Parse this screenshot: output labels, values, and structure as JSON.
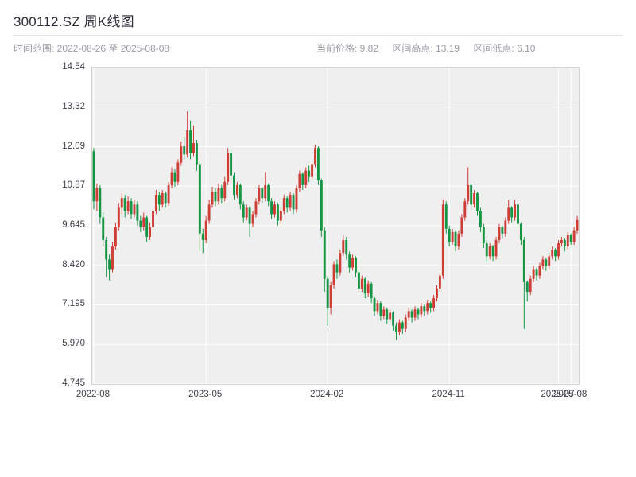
{
  "header": {
    "title": "300112.SZ 周K线图",
    "time_range": "时间范围: 2022-08-26 至 2025-08-08",
    "stats": [
      {
        "text": "当前价格: 9.82"
      },
      {
        "text": "区间高点: 13.19"
      },
      {
        "text": "区间低点: 6.10"
      }
    ]
  },
  "chart_data": {
    "type": "candlestick",
    "title": "300112.SZ 周K线图",
    "symbol": "300112.SZ",
    "period": "weekly",
    "date_start": "2022-08-26",
    "date_end": "2025-08-08",
    "current_price": 9.82,
    "range_high": 13.19,
    "range_low": 6.1,
    "ylim": [
      4.745,
      14.54
    ],
    "y_tick_labels": [
      "14.54",
      "13.32",
      "12.09",
      "10.87",
      "9.645",
      "8.420",
      "7.195",
      "5.970",
      "4.745"
    ],
    "y_tick_values": [
      14.54,
      13.32,
      12.09,
      10.87,
      9.645,
      8.42,
      7.195,
      5.97,
      4.745
    ],
    "x_ticks": [
      {
        "label": "2022-08",
        "i": 0
      },
      {
        "label": "2023-05",
        "i": 36
      },
      {
        "label": "2024-02",
        "i": 75
      },
      {
        "label": "2024-11",
        "i": 114
      },
      {
        "label": "2025-07",
        "i": 149
      },
      {
        "label": "2025-08",
        "i": 153
      }
    ],
    "grid": true,
    "plot_bg": "#efefef",
    "grid_color": "#ffffff",
    "up_color": "#cf3e36",
    "down_color": "#169644",
    "ohlc": [
      [
        11.95,
        12.05,
        10.15,
        10.4
      ],
      [
        10.4,
        10.95,
        10.1,
        10.8
      ],
      [
        10.8,
        10.9,
        9.7,
        9.9
      ],
      [
        9.9,
        10.05,
        9.0,
        9.2
      ],
      [
        9.2,
        9.3,
        8.05,
        8.6
      ],
      [
        8.6,
        8.75,
        7.95,
        8.3
      ],
      [
        8.3,
        9.15,
        8.2,
        9.0
      ],
      [
        9.0,
        9.75,
        8.9,
        9.6
      ],
      [
        9.6,
        10.35,
        9.5,
        10.2
      ],
      [
        10.2,
        10.65,
        10.0,
        10.5
      ],
      [
        10.5,
        10.6,
        9.9,
        10.1
      ],
      [
        10.1,
        10.55,
        10.0,
        10.4
      ],
      [
        10.4,
        10.5,
        9.85,
        10.0
      ],
      [
        10.0,
        10.45,
        9.9,
        10.3
      ],
      [
        10.3,
        10.4,
        9.65,
        9.8
      ],
      [
        9.8,
        9.95,
        9.45,
        9.6
      ],
      [
        9.6,
        10.05,
        9.5,
        9.9
      ],
      [
        9.9,
        9.95,
        9.15,
        9.3
      ],
      [
        9.3,
        9.75,
        9.2,
        9.6
      ],
      [
        9.6,
        10.2,
        9.5,
        10.1
      ],
      [
        10.1,
        10.75,
        10.0,
        10.6
      ],
      [
        10.6,
        10.7,
        10.1,
        10.3
      ],
      [
        10.3,
        10.75,
        10.2,
        10.65
      ],
      [
        10.65,
        10.7,
        10.2,
        10.35
      ],
      [
        10.35,
        11.0,
        10.25,
        10.9
      ],
      [
        10.9,
        11.45,
        10.8,
        11.3
      ],
      [
        11.3,
        11.4,
        10.85,
        11.0
      ],
      [
        11.0,
        11.7,
        10.9,
        11.6
      ],
      [
        11.6,
        12.25,
        11.5,
        12.1
      ],
      [
        12.1,
        12.4,
        11.7,
        11.85
      ],
      [
        11.85,
        13.19,
        11.75,
        12.6
      ],
      [
        12.6,
        12.9,
        11.7,
        11.9
      ],
      [
        11.9,
        12.75,
        11.8,
        12.2
      ],
      [
        12.2,
        12.3,
        11.35,
        11.55
      ],
      [
        11.55,
        11.65,
        8.85,
        9.4
      ],
      [
        9.4,
        9.55,
        8.8,
        9.2
      ],
      [
        9.2,
        9.95,
        9.1,
        9.8
      ],
      [
        9.8,
        10.45,
        9.7,
        10.3
      ],
      [
        10.3,
        10.85,
        10.2,
        10.7
      ],
      [
        10.7,
        10.8,
        10.25,
        10.4
      ],
      [
        10.4,
        10.95,
        10.3,
        10.8
      ],
      [
        10.8,
        10.9,
        10.35,
        10.5
      ],
      [
        10.5,
        11.15,
        10.4,
        11.0
      ],
      [
        11.0,
        12.05,
        10.9,
        11.9
      ],
      [
        11.9,
        12.0,
        11.05,
        11.2
      ],
      [
        11.2,
        11.3,
        10.45,
        10.6
      ],
      [
        10.6,
        11.0,
        10.5,
        10.9
      ],
      [
        10.9,
        10.95,
        10.15,
        10.3
      ],
      [
        10.3,
        10.4,
        9.75,
        9.9
      ],
      [
        9.9,
        10.3,
        9.8,
        10.2
      ],
      [
        10.2,
        10.25,
        9.3,
        9.7
      ],
      [
        9.7,
        10.1,
        9.6,
        10.0
      ],
      [
        10.0,
        10.5,
        9.9,
        10.4
      ],
      [
        10.4,
        10.9,
        10.3,
        10.8
      ],
      [
        10.8,
        10.85,
        10.35,
        10.5
      ],
      [
        10.5,
        11.3,
        10.4,
        10.9
      ],
      [
        10.9,
        10.95,
        10.25,
        10.4
      ],
      [
        10.4,
        10.5,
        9.85,
        10.0
      ],
      [
        10.0,
        10.4,
        9.9,
        10.3
      ],
      [
        10.3,
        10.35,
        9.65,
        9.8
      ],
      [
        9.8,
        10.2,
        9.7,
        10.1
      ],
      [
        10.1,
        10.6,
        10.0,
        10.5
      ],
      [
        10.5,
        10.55,
        10.05,
        10.2
      ],
      [
        10.2,
        10.7,
        10.1,
        10.6
      ],
      [
        10.6,
        10.65,
        10.0,
        10.15
      ],
      [
        10.15,
        10.9,
        10.05,
        10.8
      ],
      [
        10.8,
        11.35,
        10.7,
        11.25
      ],
      [
        11.25,
        11.3,
        10.75,
        10.9
      ],
      [
        10.9,
        11.45,
        10.8,
        11.35
      ],
      [
        11.35,
        11.5,
        11.0,
        11.15
      ],
      [
        11.15,
        11.65,
        11.05,
        11.55
      ],
      [
        11.55,
        12.15,
        11.45,
        12.05
      ],
      [
        12.05,
        12.1,
        10.9,
        11.05
      ],
      [
        11.05,
        11.1,
        9.3,
        9.5
      ],
      [
        9.5,
        9.6,
        7.6,
        8.0
      ],
      [
        8.0,
        8.1,
        6.55,
        7.1
      ],
      [
        7.1,
        7.9,
        6.9,
        7.8
      ],
      [
        7.8,
        8.55,
        7.7,
        8.45
      ],
      [
        8.45,
        8.6,
        8.0,
        8.2
      ],
      [
        8.2,
        8.9,
        8.1,
        8.8
      ],
      [
        8.8,
        9.35,
        8.7,
        9.2
      ],
      [
        9.2,
        9.3,
        8.6,
        8.75
      ],
      [
        8.75,
        8.85,
        8.2,
        8.35
      ],
      [
        8.35,
        8.75,
        8.25,
        8.65
      ],
      [
        8.65,
        8.7,
        8.05,
        8.2
      ],
      [
        8.2,
        8.3,
        7.55,
        7.7
      ],
      [
        7.7,
        8.1,
        7.6,
        8.0
      ],
      [
        8.0,
        8.05,
        7.4,
        7.55
      ],
      [
        7.55,
        7.95,
        7.45,
        7.85
      ],
      [
        7.85,
        7.9,
        7.25,
        7.4
      ],
      [
        7.4,
        7.45,
        6.85,
        7.0
      ],
      [
        7.0,
        7.35,
        6.9,
        7.25
      ],
      [
        7.25,
        7.3,
        6.7,
        6.85
      ],
      [
        6.85,
        7.15,
        6.75,
        7.05
      ],
      [
        7.05,
        7.1,
        6.6,
        6.75
      ],
      [
        6.75,
        7.05,
        6.65,
        6.95
      ],
      [
        6.95,
        7.0,
        6.4,
        6.55
      ],
      [
        6.55,
        6.65,
        6.1,
        6.35
      ],
      [
        6.35,
        6.75,
        6.25,
        6.65
      ],
      [
        6.65,
        6.7,
        6.3,
        6.45
      ],
      [
        6.45,
        6.9,
        6.35,
        6.8
      ],
      [
        6.8,
        7.1,
        6.7,
        7.0
      ],
      [
        7.0,
        7.05,
        6.65,
        6.8
      ],
      [
        6.8,
        7.15,
        6.7,
        7.05
      ],
      [
        7.05,
        7.1,
        6.75,
        6.9
      ],
      [
        6.9,
        7.25,
        6.8,
        7.15
      ],
      [
        7.15,
        7.2,
        6.85,
        7.0
      ],
      [
        7.0,
        7.35,
        6.9,
        7.25
      ],
      [
        7.25,
        7.3,
        6.95,
        7.1
      ],
      [
        7.1,
        7.5,
        7.0,
        7.4
      ],
      [
        7.4,
        7.8,
        7.3,
        7.7
      ],
      [
        7.7,
        8.2,
        7.6,
        8.1
      ],
      [
        8.1,
        10.45,
        8.0,
        10.3
      ],
      [
        10.3,
        10.4,
        9.4,
        9.55
      ],
      [
        9.55,
        9.65,
        9.0,
        9.15
      ],
      [
        9.15,
        9.55,
        9.05,
        9.45
      ],
      [
        9.45,
        9.5,
        8.85,
        9.0
      ],
      [
        9.0,
        9.5,
        8.9,
        9.4
      ],
      [
        9.4,
        10.0,
        9.3,
        9.9
      ],
      [
        9.9,
        10.5,
        9.8,
        10.4
      ],
      [
        10.4,
        11.45,
        10.3,
        10.9
      ],
      [
        10.9,
        10.95,
        10.15,
        10.3
      ],
      [
        10.3,
        10.75,
        10.2,
        10.65
      ],
      [
        10.65,
        10.7,
        9.95,
        10.1
      ],
      [
        10.1,
        10.2,
        9.45,
        9.6
      ],
      [
        9.6,
        9.7,
        8.95,
        9.1
      ],
      [
        9.1,
        9.2,
        8.5,
        8.7
      ],
      [
        8.7,
        9.1,
        8.6,
        9.0
      ],
      [
        9.0,
        9.05,
        8.55,
        8.7
      ],
      [
        8.7,
        9.3,
        8.6,
        9.2
      ],
      [
        9.2,
        9.7,
        9.1,
        9.6
      ],
      [
        9.6,
        9.65,
        9.25,
        9.4
      ],
      [
        9.4,
        9.9,
        9.3,
        9.8
      ],
      [
        9.8,
        10.45,
        9.7,
        10.2
      ],
      [
        10.2,
        10.25,
        9.75,
        9.9
      ],
      [
        9.9,
        10.45,
        9.8,
        10.3
      ],
      [
        10.3,
        10.35,
        9.55,
        9.7
      ],
      [
        9.7,
        9.75,
        9.05,
        9.2
      ],
      [
        9.2,
        9.3,
        6.45,
        7.9
      ],
      [
        7.9,
        7.95,
        7.3,
        7.6
      ],
      [
        7.6,
        8.1,
        7.5,
        8.0
      ],
      [
        8.0,
        8.4,
        7.9,
        8.3
      ],
      [
        8.3,
        8.35,
        7.95,
        8.1
      ],
      [
        8.1,
        8.5,
        8.0,
        8.4
      ],
      [
        8.4,
        8.7,
        8.3,
        8.6
      ],
      [
        8.6,
        8.65,
        8.25,
        8.4
      ],
      [
        8.4,
        8.8,
        8.3,
        8.7
      ],
      [
        8.7,
        9.0,
        8.6,
        8.9
      ],
      [
        8.9,
        8.95,
        8.55,
        8.7
      ],
      [
        8.7,
        9.2,
        8.6,
        9.1
      ],
      [
        9.1,
        9.3,
        9.0,
        9.2
      ],
      [
        9.2,
        9.25,
        8.85,
        9.0
      ],
      [
        9.0,
        9.45,
        8.9,
        9.35
      ],
      [
        9.35,
        9.4,
        9.05,
        9.15
      ],
      [
        9.15,
        9.6,
        9.05,
        9.5
      ],
      [
        9.5,
        9.95,
        9.4,
        9.82
      ]
    ]
  }
}
